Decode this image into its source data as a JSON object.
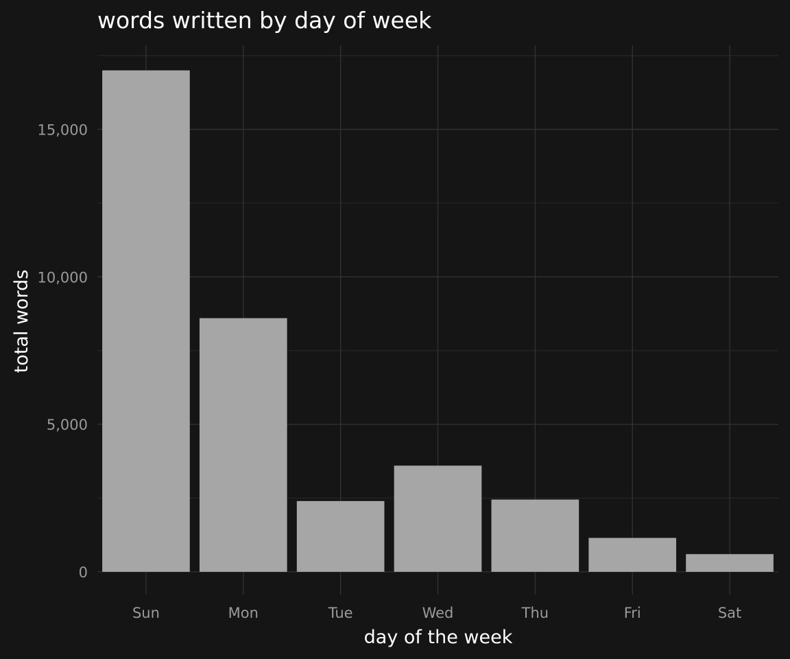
{
  "chart_data": {
    "type": "bar",
    "title": "words written by day of week",
    "xlabel": "day of the week",
    "ylabel": "total words",
    "categories": [
      "Sun",
      "Mon",
      "Tue",
      "Wed",
      "Thu",
      "Fri",
      "Sat"
    ],
    "values": [
      17000,
      8600,
      2400,
      3600,
      2450,
      1150,
      600
    ],
    "ylim": [
      0,
      17850
    ],
    "yticks": [
      0,
      5000,
      10000,
      15000
    ],
    "ytick_labels": [
      "0",
      "5,000",
      "10,000",
      "15,000"
    ],
    "grid": true,
    "colors": {
      "background": "#151515",
      "bar": "#a6a6a6",
      "grid": "#333333",
      "text": "#ffffff",
      "tick_text": "#9a9a9a"
    }
  }
}
